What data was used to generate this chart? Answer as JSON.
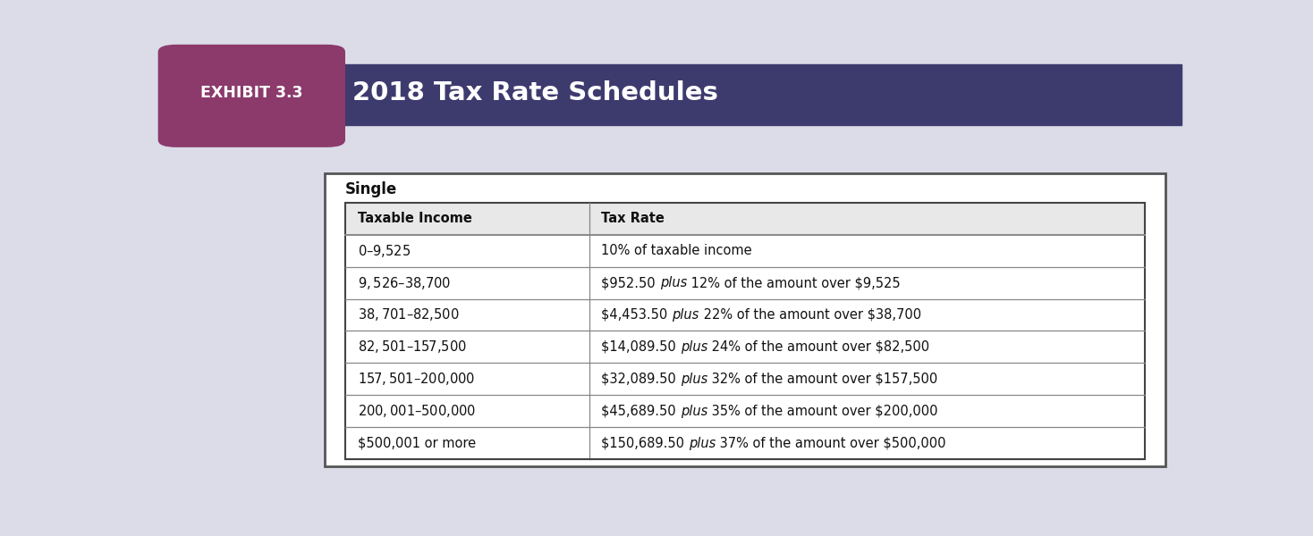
{
  "exhibit_label": "EXHIBIT 3.3",
  "title": "2018 Tax Rate Schedules",
  "header_bg": "#3d3b6e",
  "exhibit_bg": "#8b3a6b",
  "page_bg": "#dcdce8",
  "table_section": "Single",
  "col_headers": [
    "Taxable Income",
    "Tax Rate"
  ],
  "rows": [
    [
      "$0–$9,525",
      "10% of taxable income",
      false
    ],
    [
      "$9,526–$38,700",
      "$952.50 |plus| 12% of the amount over $9,525",
      true
    ],
    [
      "$38,701–$82,500",
      "$4,453.50 |plus| 22% of the amount over $38,700",
      true
    ],
    [
      "$82,501–$157,500",
      "$14,089.50 |plus| 24% of the amount over $82,500",
      true
    ],
    [
      "$157,501–$200,000",
      "$32,089.50 |plus| 32% of the amount over $157,500",
      true
    ],
    [
      "$200,001–$500,000",
      "$45,689.50 |plus| 35% of the amount over $200,000",
      true
    ],
    [
      "$500,001 or more",
      "$150,689.50 |plus| 37% of the amount over $500,000",
      true
    ]
  ],
  "italic_marker": "|plus|",
  "italic_word": "plus"
}
